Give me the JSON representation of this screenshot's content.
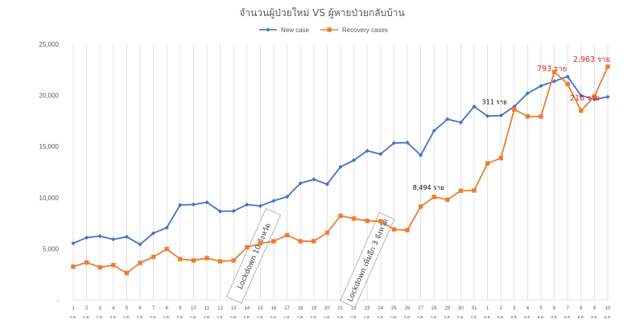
{
  "chart_data": {
    "type": "line",
    "title": "จำนวนผู้ป่วยใหม่ VS ผู้หายป่วยกลับบ้าน",
    "y_tick_labels": [
      "-",
      "5,000",
      "10,000",
      "15,000",
      "20,000",
      "25,000"
    ],
    "ylim": [
      0,
      25000
    ],
    "grid": "vertical",
    "legend_position": "top-center",
    "categories": [
      {
        "day": "1",
        "month": "ก.ค."
      },
      {
        "day": "2",
        "month": "ก.ค."
      },
      {
        "day": "3",
        "month": "ก.ค."
      },
      {
        "day": "4",
        "month": "ก.ค."
      },
      {
        "day": "5",
        "month": "ก.ค."
      },
      {
        "day": "6",
        "month": "ก.ค."
      },
      {
        "day": "7",
        "month": "ก.ค."
      },
      {
        "day": "8",
        "month": "ก.ค."
      },
      {
        "day": "9",
        "month": "ก.ค."
      },
      {
        "day": "10",
        "month": "ก.ค."
      },
      {
        "day": "11",
        "month": "ก.ค."
      },
      {
        "day": "12",
        "month": "ก.ค."
      },
      {
        "day": "13",
        "month": "ก.ค."
      },
      {
        "day": "14",
        "month": "ก.ค."
      },
      {
        "day": "15",
        "month": "ก.ค."
      },
      {
        "day": "16",
        "month": "ก.ค."
      },
      {
        "day": "17",
        "month": "ก.ค."
      },
      {
        "day": "18",
        "month": "ก.ค."
      },
      {
        "day": "19",
        "month": "ก.ค."
      },
      {
        "day": "20",
        "month": "ก.ค."
      },
      {
        "day": "21",
        "month": "ก.ค."
      },
      {
        "day": "22",
        "month": "ก.ค."
      },
      {
        "day": "23",
        "month": "ก.ค."
      },
      {
        "day": "24",
        "month": "ก.ค."
      },
      {
        "day": "25",
        "month": "ก.ค."
      },
      {
        "day": "26",
        "month": "ก.ค."
      },
      {
        "day": "27",
        "month": "ก.ค."
      },
      {
        "day": "28",
        "month": "ก.ค."
      },
      {
        "day": "29",
        "month": "ก.ค."
      },
      {
        "day": "30",
        "month": "ก.ค."
      },
      {
        "day": "31",
        "month": "ก.ค."
      },
      {
        "day": "1",
        "month": "ส.ค."
      },
      {
        "day": "2",
        "month": "ส.ค."
      },
      {
        "day": "3",
        "month": "ส.ค."
      },
      {
        "day": "4",
        "month": "ส.ค."
      },
      {
        "day": "5",
        "month": "ส.ค."
      },
      {
        "day": "6",
        "month": "ส.ค."
      },
      {
        "day": "7",
        "month": "ส.ค."
      },
      {
        "day": "8",
        "month": "ส.ค."
      },
      {
        "day": "9",
        "month": "ส.ค."
      },
      {
        "day": "10",
        "month": "ส.ค."
      }
    ],
    "series": [
      {
        "name": "New case",
        "color": "#4472c4",
        "marker": "diamond",
        "values": [
          5533,
          6087,
          6230,
          5916,
          6166,
          5420,
          6519,
          7058,
          9276,
          9326,
          9539,
          8656,
          8685,
          9317,
          9186,
          9692,
          10082,
          11397,
          11784,
          11305,
          13002,
          13655,
          14575,
          14260,
          15335,
          15376,
          14150,
          16533,
          17669,
          17345,
          18912,
          17970,
          18027,
          18901,
          20200,
          20920,
          21379,
          21838,
          19983,
          19603,
          19851
        ]
      },
      {
        "name": "Recovery cases",
        "color": "#ed7d31",
        "marker": "square",
        "values": [
          3251,
          3661,
          3180,
          3401,
          2616,
          3614,
          4199,
          4972,
          3989,
          3858,
          4083,
          3766,
          3851,
          5145,
          5513,
          5729,
          6331,
          5730,
          5740,
          6566,
          8226,
          7946,
          7727,
          7691,
          6895,
          6817,
          9125,
          10062,
          9794,
          10667,
          10698,
          13343,
          13862,
          18617,
          17936,
          17926,
          22301,
          21099,
          18500,
          19900,
          22800
        ]
      }
    ],
    "annotations": [
      {
        "text": "8,494 ราย",
        "color": "black",
        "x_index": 27,
        "value": 10062,
        "dx": -7,
        "dy": -9
      },
      {
        "text": "311 ราย",
        "color": "black",
        "x_index": 32,
        "value": 18027,
        "dx": -8,
        "dy": -14
      },
      {
        "text": "793 ราย",
        "color": "red",
        "x_index": 36,
        "value": 22301,
        "dx": -3,
        "dy": -1
      },
      {
        "text": "216 ราย",
        "color": "red",
        "x_index": 39,
        "value": 19903,
        "dx": -12,
        "dy": 5
      },
      {
        "text": "2,963 ราย",
        "color": "red",
        "x_index": 40,
        "value": 22800,
        "dx": -20,
        "dy": -6
      }
    ],
    "callouts": [
      {
        "text": "Lockdown 10 จังหวัด",
        "x_index": 13.5,
        "value": 4300
      },
      {
        "text": "Lockdown เพิ่มอีก 3 จังหวัด",
        "x_index": 22.0,
        "value": 3900
      }
    ]
  }
}
